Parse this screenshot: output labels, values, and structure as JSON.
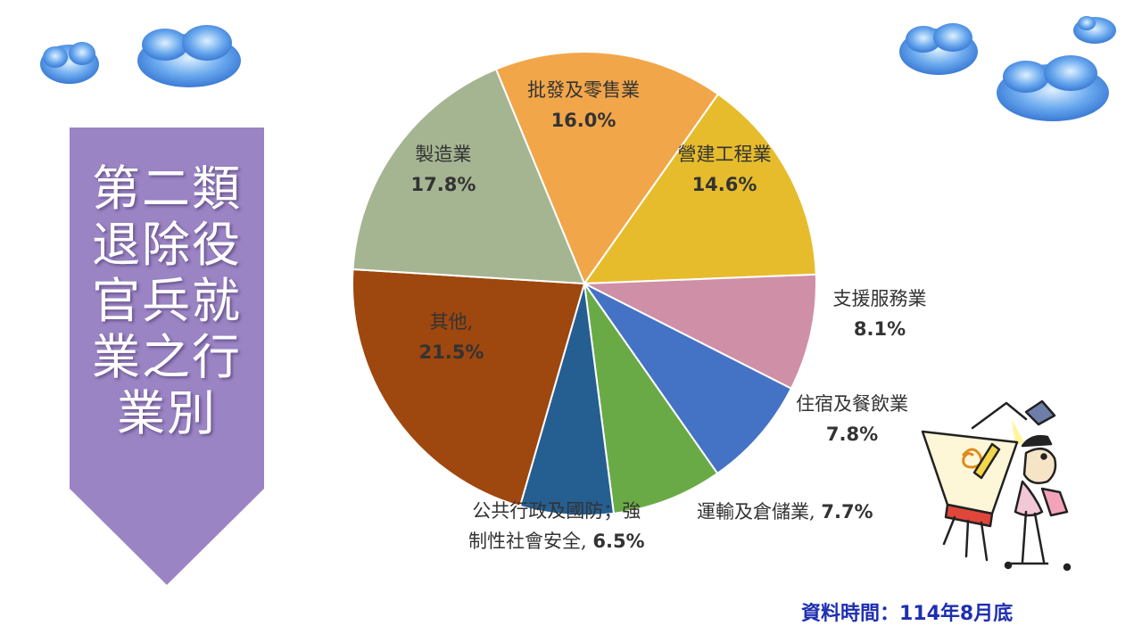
{
  "banner": {
    "title_lines": [
      "第二類",
      "退除役",
      "官兵就",
      "業之行",
      "業別"
    ],
    "color": "#9b84c4"
  },
  "source_note": "資料時間：114年8月底",
  "icons": {
    "clouds": "cloud-icon",
    "artist": "artist-easel-illustration"
  },
  "chart_data": {
    "type": "pie",
    "unit": "%",
    "slices": [
      {
        "label": "批發及零售業",
        "value": 16.0,
        "value_text": "16.0%",
        "color": "#f2a64a"
      },
      {
        "label": "營建工程業",
        "value": 14.6,
        "value_text": "14.6%",
        "color": "#e6bc2c"
      },
      {
        "label": "支援服務業",
        "value": 8.1,
        "value_text": "8.1%",
        "color": "#cf8fa6"
      },
      {
        "label": "住宿及餐飲業",
        "value": 7.8,
        "value_text": "7.8%",
        "color": "#4472c4"
      },
      {
        "label": "運輸及倉儲業, ",
        "value": 7.7,
        "value_text": "7.7%",
        "color": "#6aaa46"
      },
      {
        "label": "公共行政及國防；強\n制性社會安全, ",
        "value": 6.5,
        "value_text": "6.5%",
        "color": "#255e91"
      },
      {
        "label": "其他,",
        "value": 21.5,
        "value_text": "21.5%",
        "color": "#9e470e"
      },
      {
        "label": "製造業",
        "value": 17.8,
        "value_text": "17.8%",
        "color": "#a5b592"
      }
    ]
  }
}
